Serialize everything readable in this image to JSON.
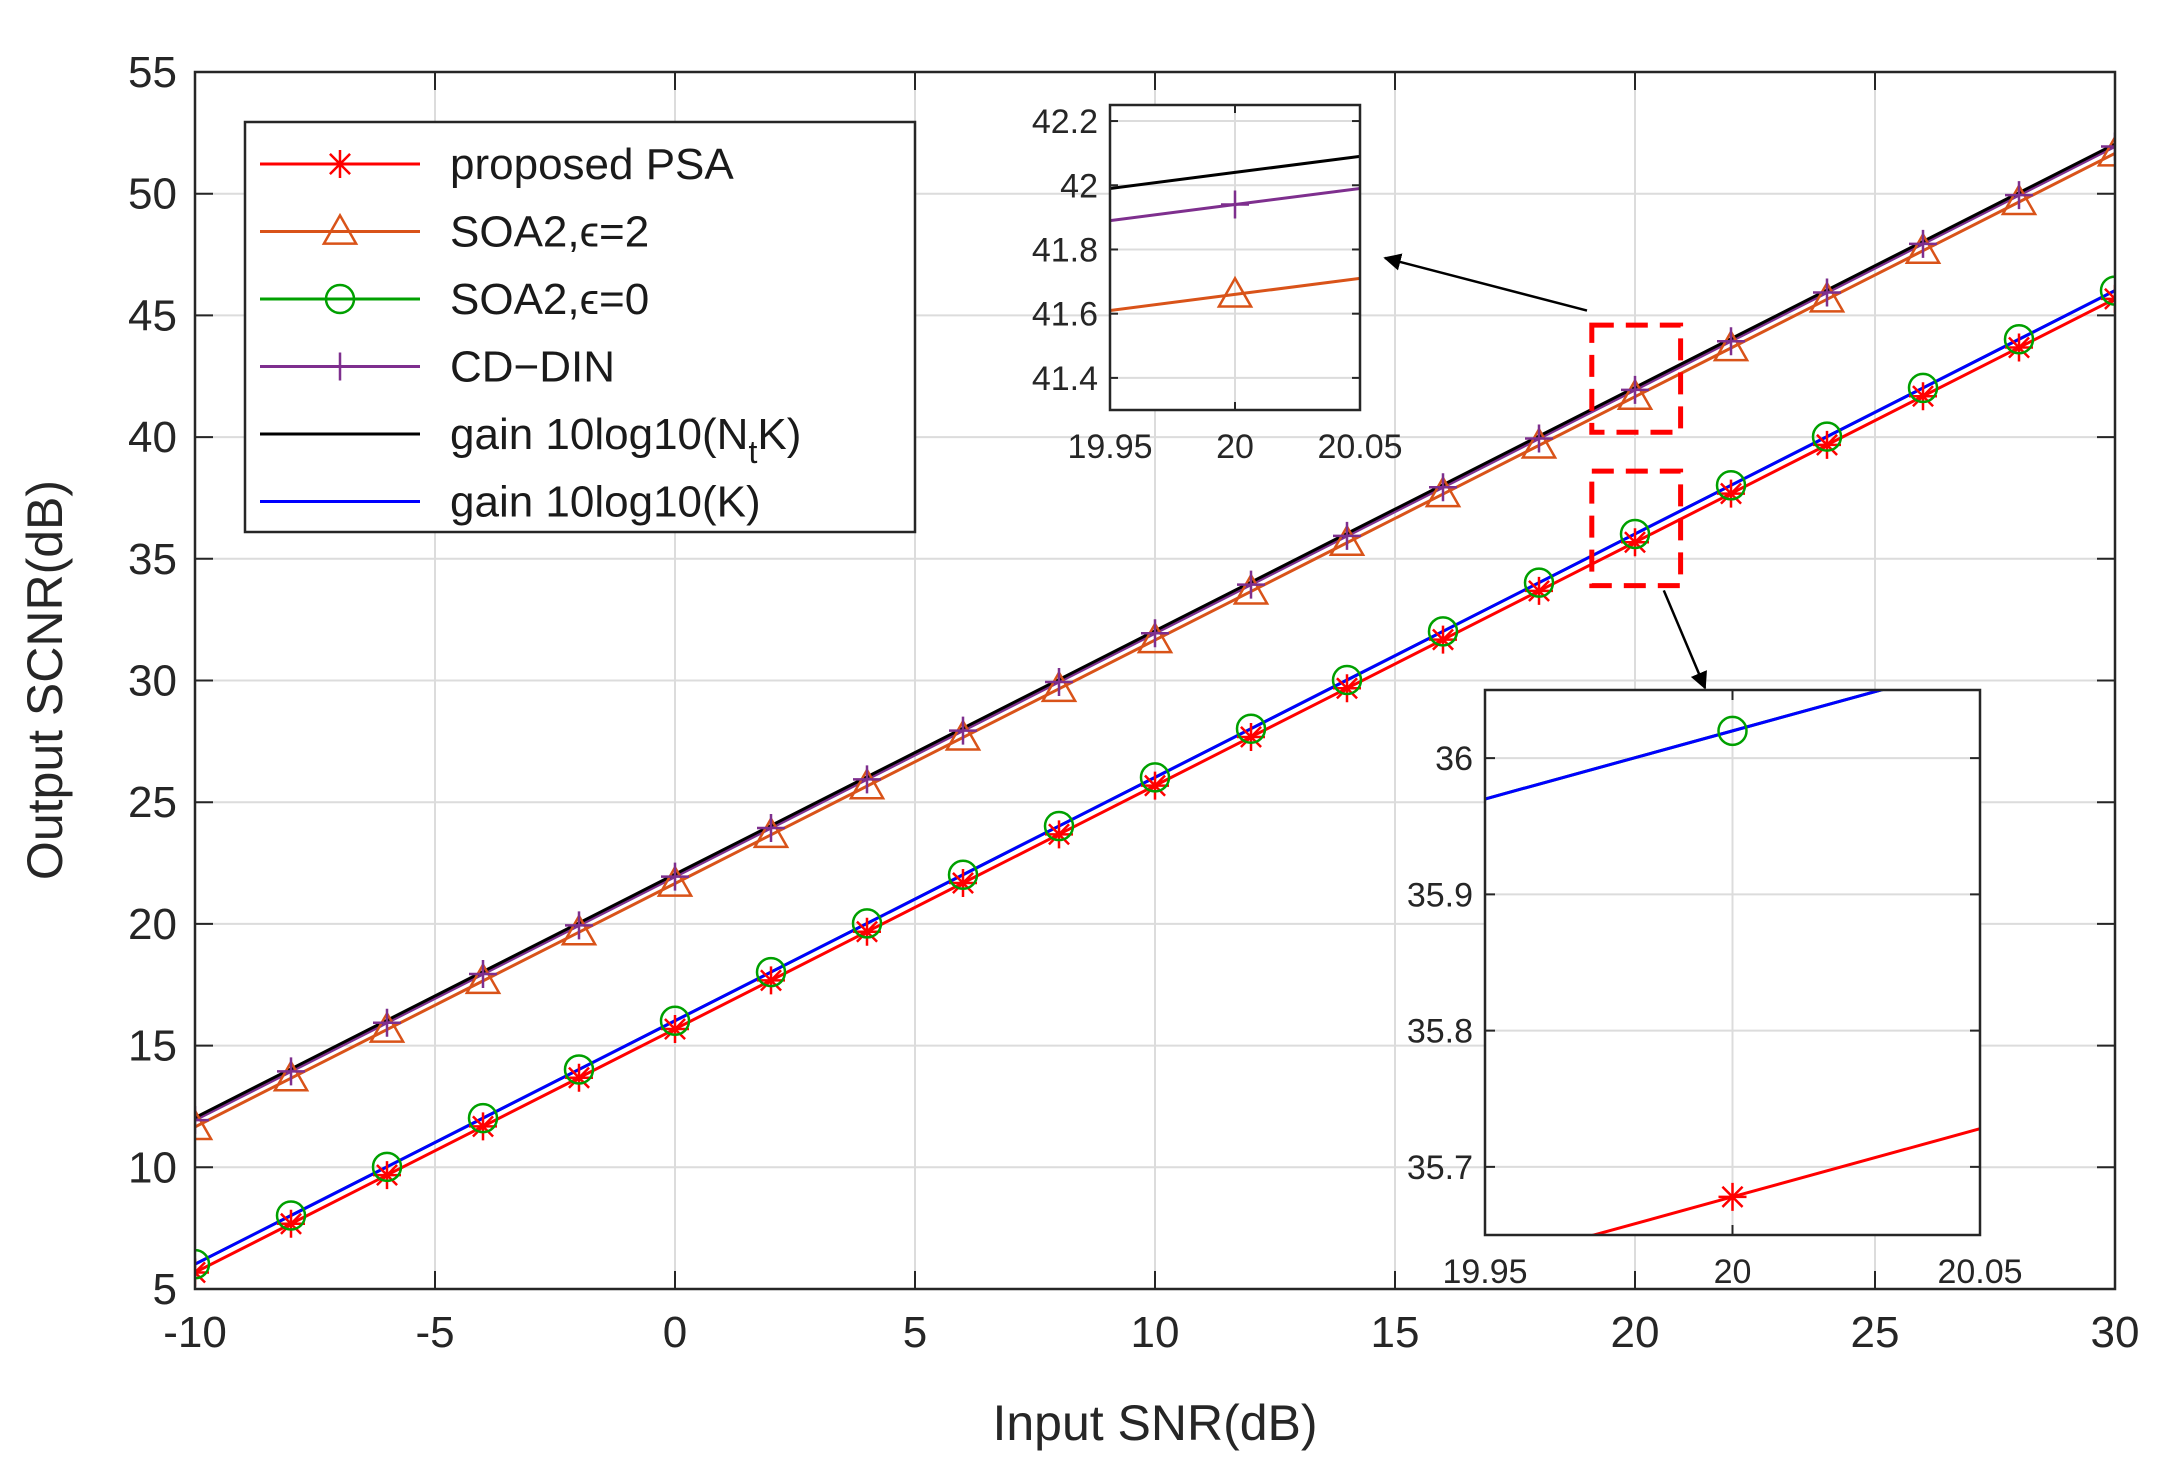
{
  "chart_data": [
    {
      "type": "line",
      "xlabel": "Input SNR(dB)",
      "ylabel": "Output SCNR(dB)",
      "xlim": [
        -10,
        30
      ],
      "ylim": [
        5,
        55
      ],
      "xticks": [
        "-10",
        "-5",
        "0",
        "5",
        "10",
        "15",
        "20",
        "25",
        "30"
      ],
      "yticks": [
        "5",
        "10",
        "15",
        "20",
        "25",
        "30",
        "35",
        "40",
        "45",
        "50",
        "55"
      ],
      "grid": true,
      "legend_position": "top-left",
      "x": [
        -10,
        -8,
        -6,
        -4,
        -2,
        0,
        2,
        4,
        6,
        8,
        10,
        12,
        14,
        16,
        18,
        20,
        22,
        24,
        26,
        28,
        30
      ],
      "series": [
        {
          "name": "proposed PSA",
          "color": "#ff0000",
          "marker": "star",
          "values": [
            5.68,
            7.68,
            9.68,
            11.68,
            13.68,
            15.68,
            17.68,
            19.68,
            21.68,
            23.68,
            25.68,
            27.68,
            29.68,
            31.68,
            33.68,
            35.68,
            37.68,
            39.68,
            41.68,
            43.68,
            45.68
          ]
        },
        {
          "name": "SOA2,ϵ=2",
          "color": "#d95319",
          "marker": "triangle",
          "values": [
            11.66,
            13.66,
            15.66,
            17.66,
            19.66,
            21.66,
            23.66,
            25.66,
            27.66,
            29.66,
            31.66,
            33.66,
            35.66,
            37.66,
            39.66,
            41.66,
            43.66,
            45.66,
            47.66,
            49.66,
            51.66
          ]
        },
        {
          "name": "SOA2,ϵ=0",
          "color": "#00a000",
          "marker": "circle",
          "values": [
            6.02,
            8.02,
            10.02,
            12.02,
            14.02,
            16.02,
            18.02,
            20.02,
            22.02,
            24.02,
            26.02,
            28.02,
            30.02,
            32.02,
            34.02,
            36.02,
            38.02,
            40.02,
            42.02,
            44.02,
            46.02
          ]
        },
        {
          "name": "CD−DIN",
          "color": "#7e2f8e",
          "marker": "plus",
          "values": [
            11.94,
            13.94,
            15.94,
            17.94,
            19.94,
            21.94,
            23.94,
            25.94,
            27.94,
            29.94,
            31.94,
            33.94,
            35.94,
            37.94,
            39.94,
            41.94,
            43.94,
            45.94,
            47.94,
            49.94,
            51.94
          ]
        },
        {
          "name": "gain 10log10(N",
          "name_sub": "t",
          "name_suffix": "K)",
          "color": "#000000",
          "marker": "none",
          "values": [
            12.04,
            14.04,
            16.04,
            18.04,
            20.04,
            22.04,
            24.04,
            26.04,
            28.04,
            30.04,
            32.04,
            34.04,
            36.04,
            38.04,
            40.04,
            42.04,
            44.04,
            46.04,
            48.04,
            50.04,
            52.04
          ]
        },
        {
          "name": "gain 10log10(K)",
          "color": "#0000ff",
          "marker": "none",
          "values": [
            6.02,
            8.02,
            10.02,
            12.02,
            14.02,
            16.02,
            18.02,
            20.02,
            22.02,
            24.02,
            26.02,
            28.02,
            30.02,
            32.02,
            34.02,
            36.02,
            38.02,
            40.02,
            42.02,
            44.02,
            46.02
          ]
        }
      ]
    },
    {
      "type": "line",
      "xlim": [
        19.95,
        20.05
      ],
      "ylim": [
        41.3,
        42.25
      ],
      "xticks": [
        "19.95",
        "20",
        "20.05"
      ],
      "yticks": [
        "41.4",
        "41.6",
        "41.8",
        "42",
        "42.2"
      ],
      "grid": true,
      "x": [
        19.95,
        20,
        20.05
      ],
      "series": [
        {
          "color": "#000000",
          "marker": "none",
          "values": [
            41.99,
            42.04,
            42.09
          ]
        },
        {
          "color": "#7e2f8e",
          "marker": "plus",
          "values": [
            41.89,
            41.94,
            41.99
          ]
        },
        {
          "color": "#d95319",
          "marker": "triangle",
          "values": [
            41.61,
            41.66,
            41.71
          ]
        }
      ]
    },
    {
      "type": "line",
      "xlim": [
        19.95,
        20.05
      ],
      "ylim": [
        35.65,
        36.05
      ],
      "xticks": [
        "19.95",
        "20",
        "20.05"
      ],
      "yticks": [
        "35.7",
        "35.8",
        "35.9",
        "36"
      ],
      "grid": true,
      "x": [
        19.95,
        20,
        20.05
      ],
      "series": [
        {
          "color": "#00a000",
          "marker": "circle",
          "values": [
            35.97,
            36.02,
            36.07
          ]
        },
        {
          "color": "#0000ff",
          "marker": "none",
          "values": [
            35.97,
            36.02,
            36.07
          ]
        },
        {
          "color": "#ff0000",
          "marker": "star",
          "values": [
            35.628,
            35.678,
            35.728
          ]
        }
      ]
    }
  ]
}
